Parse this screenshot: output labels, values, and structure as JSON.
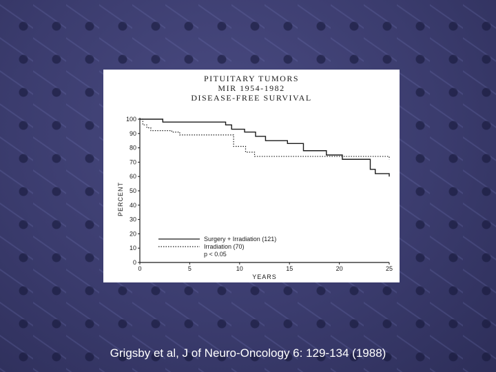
{
  "caption": "Grigsby et al, J of Neuro-Oncology 6: 129-134 (1988)",
  "colors": {
    "background": "#3b3c6e",
    "panel": "#ffffff",
    "ink": "#1a1a1a",
    "caption": "#ffffff"
  },
  "chart_data": {
    "type": "line",
    "title_lines": [
      "PITUITARY TUMORS",
      "MIR 1954-1982",
      "DISEASE-FREE SURVIVAL"
    ],
    "xlabel": "YEARS",
    "ylabel": "PERCENT",
    "xlim": [
      0,
      25
    ],
    "ylim": [
      0,
      100
    ],
    "xticks": [
      0,
      5,
      10,
      15,
      20,
      25
    ],
    "yticks": [
      0,
      10,
      20,
      30,
      40,
      50,
      60,
      70,
      80,
      90,
      100
    ],
    "grid": false,
    "legend_position": "bottom-left",
    "annotation": "p < 0.05",
    "series": [
      {
        "name": "Surgery + Irradiation (121)",
        "style": "solid",
        "x": [
          0,
          2.3,
          8.6,
          9.2,
          10.5,
          11.6,
          12.6,
          14.8,
          16.4,
          18.7,
          20.3,
          23.1,
          23.6,
          25
        ],
        "y": [
          100,
          98,
          96,
          93,
          91,
          88,
          85,
          83,
          78,
          75,
          72,
          65,
          62,
          60
        ]
      },
      {
        "name": "Irradiation (70)",
        "style": "dotted",
        "x": [
          0,
          0.3,
          0.7,
          1.1,
          3.2,
          4.0,
          9.4,
          10.6,
          11.5,
          25
        ],
        "y": [
          100,
          96,
          94,
          92,
          91,
          89,
          81,
          77,
          74,
          72
        ]
      }
    ]
  }
}
